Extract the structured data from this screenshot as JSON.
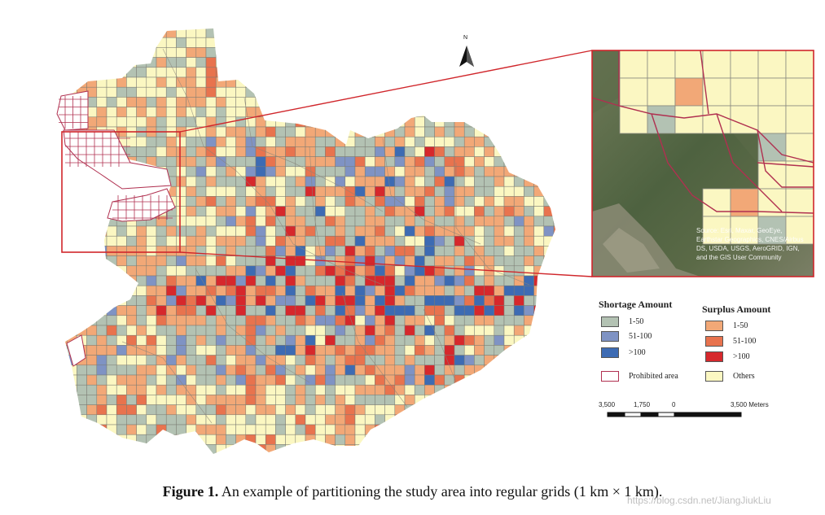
{
  "colors": {
    "shortage_low": "#b3c2b3",
    "shortage_mid": "#7f93c4",
    "shortage_high": "#3d6bb3",
    "surplus_low": "#f2a877",
    "surplus_mid": "#e8734e",
    "surplus_high": "#d6282c",
    "others": "#fbf7c2",
    "prohibited": "#b03050",
    "highlight_box": "#d0262b"
  },
  "north_arrow": {
    "label": "N",
    "icon": "north-arrow-icon"
  },
  "inset": {
    "source_text": "Source: Esri, Maxar, GeoEye, Earthstar Geographics, CNES/Airbus DS, USDA, USGS, AeroGRID, IGN, and the GIS User Community"
  },
  "legend": {
    "shortage_title": "Shortage Amount",
    "surplus_title": "Surplus Amount",
    "shortage_items": [
      {
        "label": "1-50",
        "color": "#b3c2b3"
      },
      {
        "label": "51-100",
        "color": "#7f93c4"
      },
      {
        "label": ">100",
        "color": "#3d6bb3"
      }
    ],
    "surplus_items": [
      {
        "label": "1-50",
        "color": "#f2a877"
      },
      {
        "label": "51-100",
        "color": "#e8734e"
      },
      {
        "label": ">100",
        "color": "#d6282c"
      }
    ],
    "prohibited_label": "Prohibited area",
    "others_label": "Others"
  },
  "scale_bar": {
    "labels": [
      "3,500",
      "1,750",
      "0",
      "3,500 Meters"
    ]
  },
  "caption": {
    "label": "Figure 1.",
    "text": "An example of partitioning the study area into regular grids (1 km × 1 km)."
  },
  "watermark": "https://blog.csdn.net/JiangJiukLiu"
}
